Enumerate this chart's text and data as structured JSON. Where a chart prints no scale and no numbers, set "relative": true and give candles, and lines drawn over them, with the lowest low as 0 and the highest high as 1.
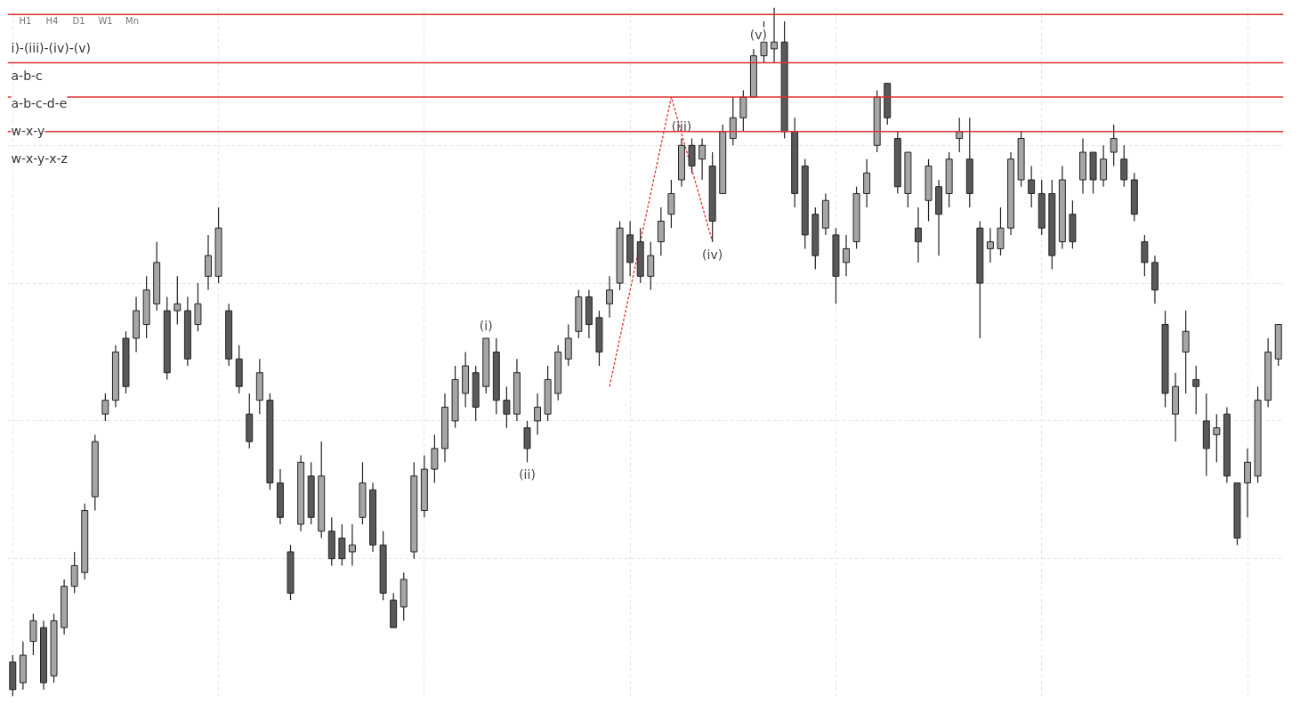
{
  "chart_data": {
    "type": "candlestick",
    "relative": true,
    "grid": true,
    "tick_labels": false,
    "series": [
      {
        "colors": [
          "#595959",
          "#a6a6a6",
          "#a6a6a6",
          "#595959",
          "#a6a6a6",
          "#a6a6a6",
          "#a6a6a6",
          "#a6a6a6",
          "#a6a6a6",
          "#a6a6a6",
          "#a6a6a6",
          "#595959",
          "#a6a6a6",
          "#a6a6a6",
          "#a6a6a6",
          "#595959",
          "#a6a6a6",
          "#595959",
          "#a6a6a6",
          "#a6a6a6",
          "#a6a6a6",
          "#595959",
          "#595959",
          "#595959",
          "#a6a6a6",
          "#595959",
          "#595959",
          "#595959",
          "#a6a6a6",
          "#595959",
          "#a6a6a6",
          "#595959",
          "#595959",
          "#a6a6a6",
          "#a6a6a6",
          "#595959",
          "#595959",
          "#595959",
          "#a6a6a6",
          "#a6a6a6",
          "#a6a6a6",
          "#a6a6a6",
          "#a6a6a6",
          "#a6a6a6",
          "#a6a6a6",
          "#595959",
          "#a6a6a6",
          "#595959",
          "#595959",
          "#a6a6a6",
          "#595959",
          "#a6a6a6",
          "#a6a6a6",
          "#a6a6a6",
          "#a6a6a6",
          "#a6a6a6",
          "#595959",
          "#595959",
          "#a6a6a6",
          "#a6a6a6",
          "#595959",
          "#595959",
          "#a6a6a6",
          "#a6a6a6",
          "#a6a6a6",
          "#a6a6a6",
          "#595959",
          "#a6a6a6",
          "#595959",
          "#a6a6a6",
          "#a6a6a6",
          "#a6a6a6",
          "#a6a6a6",
          "#a6a6a6",
          "#a6a6a6",
          "#595959",
          "#595959",
          "#595959",
          "#595959",
          "#a6a6a6",
          "#595959",
          "#a6a6a6",
          "#a6a6a6",
          "#a6a6a6",
          "#a6a6a6",
          "#595959",
          "#595959",
          "#a6a6a6",
          "#595959",
          "#a6a6a6",
          "#595959",
          "#a6a6a6",
          "#a6a6a6",
          "#595959",
          "#595959",
          "#a6a6a6",
          "#a6a6a6",
          "#a6a6a6",
          "#a6a6a6",
          "#595959",
          "#595959",
          "#595959",
          "#a6a6a6",
          "#595959",
          "#a6a6a6",
          "#595959",
          "#a6a6a6",
          "#a6a6a6",
          "#595959",
          "#595959",
          "#595959",
          "#595959",
          "#595959",
          "#a6a6a6",
          "#a6a6a6",
          "#595959",
          "#595959",
          "#a6a6a6",
          "#595959",
          "#595959",
          "#a6a6a6",
          "#a6a6a6",
          "#a6a6a6",
          "#a6a6a6"
        ],
        "value_labels": [
          null,
          null,
          null,
          null,
          null,
          null,
          null,
          null,
          null,
          null,
          null,
          null,
          null,
          null,
          null,
          null,
          null,
          null,
          null,
          null,
          null,
          null,
          null,
          null,
          null,
          null,
          null,
          null,
          null,
          null,
          null,
          null,
          null,
          null,
          null,
          null,
          null,
          null,
          null,
          null,
          null,
          null,
          null,
          null,
          null,
          null,
          "(i)",
          null,
          null,
          null,
          "(ii)",
          null,
          null,
          null,
          null,
          null,
          null,
          null,
          null,
          null,
          null,
          null,
          null,
          null,
          null,
          "(iii)",
          null,
          null,
          "(iv)",
          null,
          null,
          null,
          null,
          null,
          "(v)",
          null,
          null,
          null,
          null,
          null,
          null,
          null,
          null,
          null,
          null,
          null,
          null,
          null,
          null,
          null,
          null,
          null,
          null,
          null,
          null,
          null,
          null,
          null,
          null,
          null,
          null,
          null,
          null,
          null,
          null,
          null,
          null,
          null,
          null,
          null,
          null,
          null,
          null,
          null,
          null,
          null,
          null,
          null,
          null,
          null,
          null,
          null,
          null,
          null
        ],
        "ohlc": [
          [
            0.05,
            0.06,
            0.0,
            0.01
          ],
          [
            0.02,
            0.08,
            0.01,
            0.06
          ],
          [
            0.08,
            0.12,
            0.06,
            0.11
          ],
          [
            0.1,
            0.11,
            0.01,
            0.02
          ],
          [
            0.03,
            0.12,
            0.02,
            0.11
          ],
          [
            0.1,
            0.17,
            0.09,
            0.16
          ],
          [
            0.16,
            0.21,
            0.15,
            0.19
          ],
          [
            0.18,
            0.28,
            0.17,
            0.27
          ],
          [
            0.29,
            0.38,
            0.27,
            0.37
          ],
          [
            0.41,
            0.44,
            0.4,
            0.43
          ],
          [
            0.43,
            0.51,
            0.42,
            0.5
          ],
          [
            0.52,
            0.53,
            0.44,
            0.45
          ],
          [
            0.52,
            0.58,
            0.5,
            0.56
          ],
          [
            0.54,
            0.61,
            0.52,
            0.59
          ],
          [
            0.57,
            0.66,
            0.56,
            0.63
          ],
          [
            0.56,
            0.58,
            0.46,
            0.47
          ],
          [
            0.56,
            0.61,
            0.54,
            0.57
          ],
          [
            0.56,
            0.58,
            0.48,
            0.49
          ],
          [
            0.54,
            0.6,
            0.53,
            0.57
          ],
          [
            0.61,
            0.67,
            0.59,
            0.64
          ],
          [
            0.61,
            0.71,
            0.6,
            0.68
          ],
          [
            0.56,
            0.57,
            0.48,
            0.49
          ],
          [
            0.49,
            0.51,
            0.44,
            0.45
          ],
          [
            0.41,
            0.44,
            0.36,
            0.37
          ],
          [
            0.43,
            0.49,
            0.41,
            0.47
          ],
          [
            0.43,
            0.44,
            0.3,
            0.31
          ],
          [
            0.31,
            0.33,
            0.25,
            0.26
          ],
          [
            0.21,
            0.22,
            0.14,
            0.15
          ],
          [
            0.25,
            0.35,
            0.24,
            0.34
          ],
          [
            0.32,
            0.34,
            0.25,
            0.26
          ],
          [
            0.24,
            0.37,
            0.23,
            0.32
          ],
          [
            0.24,
            0.26,
            0.19,
            0.2
          ],
          [
            0.23,
            0.25,
            0.19,
            0.2
          ],
          [
            0.21,
            0.25,
            0.19,
            0.22
          ],
          [
            0.26,
            0.34,
            0.25,
            0.31
          ],
          [
            0.3,
            0.31,
            0.21,
            0.22
          ],
          [
            0.22,
            0.24,
            0.14,
            0.15
          ],
          [
            0.14,
            0.15,
            0.1,
            0.1
          ],
          [
            0.13,
            0.18,
            0.11,
            0.17
          ],
          [
            0.21,
            0.34,
            0.2,
            0.32
          ],
          [
            0.27,
            0.35,
            0.26,
            0.33
          ],
          [
            0.33,
            0.38,
            0.31,
            0.36
          ],
          [
            0.36,
            0.44,
            0.34,
            0.42
          ],
          [
            0.4,
            0.48,
            0.39,
            0.46
          ],
          [
            0.44,
            0.5,
            0.42,
            0.48
          ],
          [
            0.47,
            0.48,
            0.4,
            0.42
          ],
          [
            0.45,
            0.52,
            0.44,
            0.52
          ],
          [
            0.5,
            0.52,
            0.41,
            0.43
          ],
          [
            0.43,
            0.45,
            0.39,
            0.41
          ],
          [
            0.41,
            0.49,
            0.4,
            0.47
          ],
          [
            0.39,
            0.4,
            0.34,
            0.36
          ],
          [
            0.4,
            0.44,
            0.38,
            0.42
          ],
          [
            0.41,
            0.48,
            0.4,
            0.46
          ],
          [
            0.44,
            0.51,
            0.43,
            0.5
          ],
          [
            0.49,
            0.54,
            0.48,
            0.52
          ],
          [
            0.53,
            0.59,
            0.52,
            0.58
          ],
          [
            0.58,
            0.59,
            0.52,
            0.54
          ],
          [
            0.55,
            0.56,
            0.48,
            0.5
          ],
          [
            0.57,
            0.61,
            0.55,
            0.59
          ],
          [
            0.6,
            0.69,
            0.59,
            0.68
          ],
          [
            0.67,
            0.69,
            0.61,
            0.63
          ],
          [
            0.66,
            0.68,
            0.6,
            0.61
          ],
          [
            0.61,
            0.66,
            0.59,
            0.64
          ],
          [
            0.66,
            0.71,
            0.64,
            0.69
          ],
          [
            0.7,
            0.75,
            0.68,
            0.73
          ],
          [
            0.75,
            0.81,
            0.74,
            0.8
          ],
          [
            0.8,
            0.81,
            0.76,
            0.77
          ],
          [
            0.78,
            0.81,
            0.75,
            0.8
          ],
          [
            0.77,
            0.79,
            0.66,
            0.69
          ],
          [
            0.73,
            0.83,
            0.73,
            0.82
          ],
          [
            0.81,
            0.87,
            0.8,
            0.84
          ],
          [
            0.84,
            0.88,
            0.82,
            0.87
          ],
          [
            0.87,
            0.94,
            0.87,
            0.93
          ],
          [
            0.93,
            0.98,
            0.92,
            0.95
          ],
          [
            0.94,
            1.0,
            0.92,
            0.95
          ],
          [
            0.95,
            0.98,
            0.81,
            0.82
          ],
          [
            0.82,
            0.84,
            0.71,
            0.73
          ],
          [
            0.77,
            0.78,
            0.65,
            0.67
          ],
          [
            0.7,
            0.71,
            0.62,
            0.64
          ],
          [
            0.68,
            0.73,
            0.67,
            0.72
          ],
          [
            0.67,
            0.68,
            0.57,
            0.61
          ],
          [
            0.63,
            0.67,
            0.61,
            0.65
          ],
          [
            0.66,
            0.74,
            0.65,
            0.73
          ],
          [
            0.73,
            0.78,
            0.71,
            0.76
          ],
          [
            0.8,
            0.88,
            0.79,
            0.87
          ],
          [
            0.89,
            0.89,
            0.83,
            0.84
          ],
          [
            0.81,
            0.82,
            0.73,
            0.74
          ],
          [
            0.73,
            0.79,
            0.71,
            0.79
          ],
          [
            0.68,
            0.71,
            0.63,
            0.66
          ],
          [
            0.72,
            0.78,
            0.69,
            0.77
          ],
          [
            0.74,
            0.75,
            0.64,
            0.7
          ],
          [
            0.73,
            0.79,
            0.71,
            0.78
          ],
          [
            0.81,
            0.84,
            0.79,
            0.82
          ],
          [
            0.78,
            0.84,
            0.71,
            0.73
          ],
          [
            0.68,
            0.69,
            0.52,
            0.6
          ],
          [
            0.65,
            0.68,
            0.63,
            0.66
          ],
          [
            0.65,
            0.71,
            0.64,
            0.68
          ],
          [
            0.68,
            0.79,
            0.67,
            0.78
          ],
          [
            0.75,
            0.82,
            0.74,
            0.81
          ],
          [
            0.75,
            0.77,
            0.71,
            0.73
          ],
          [
            0.73,
            0.75,
            0.67,
            0.68
          ],
          [
            0.73,
            0.75,
            0.62,
            0.64
          ],
          [
            0.66,
            0.77,
            0.65,
            0.75
          ],
          [
            0.7,
            0.72,
            0.65,
            0.66
          ],
          [
            0.75,
            0.81,
            0.73,
            0.79
          ],
          [
            0.79,
            0.79,
            0.73,
            0.75
          ],
          [
            0.75,
            0.8,
            0.74,
            0.78
          ],
          [
            0.79,
            0.83,
            0.77,
            0.81
          ],
          [
            0.78,
            0.8,
            0.74,
            0.75
          ],
          [
            0.75,
            0.76,
            0.69,
            0.7
          ],
          [
            0.66,
            0.67,
            0.61,
            0.63
          ],
          [
            0.63,
            0.64,
            0.57,
            0.59
          ],
          [
            0.54,
            0.56,
            0.42,
            0.44
          ],
          [
            0.41,
            0.47,
            0.37,
            0.45
          ],
          [
            0.5,
            0.56,
            0.44,
            0.53
          ],
          [
            0.46,
            0.48,
            0.41,
            0.45
          ],
          [
            0.4,
            0.44,
            0.32,
            0.36
          ],
          [
            0.38,
            0.41,
            0.34,
            0.39
          ],
          [
            0.41,
            0.42,
            0.31,
            0.32
          ],
          [
            0.31,
            0.31,
            0.22,
            0.23
          ],
          [
            0.31,
            0.36,
            0.26,
            0.34
          ],
          [
            0.32,
            0.45,
            0.31,
            0.43
          ],
          [
            0.43,
            0.52,
            0.42,
            0.5
          ],
          [
            0.49,
            0.54,
            0.48,
            0.54
          ]
        ]
      },
      {
        "type": "line",
        "color": "#e03030",
        "line_style": "dashed",
        "values": [
          null,
          null,
          null,
          null,
          null,
          null,
          null,
          null,
          null,
          null,
          null,
          null,
          null,
          null,
          null,
          null,
          null,
          null,
          null,
          null,
          null,
          null,
          null,
          null,
          null,
          null,
          null,
          null,
          null,
          null,
          null,
          null,
          null,
          null,
          null,
          null,
          null,
          null,
          null,
          null,
          null,
          null,
          null,
          null,
          null,
          null,
          null,
          null,
          null,
          null,
          null,
          null,
          null,
          null,
          null,
          null,
          null,
          null,
          0.45,
          null,
          null,
          null,
          null,
          null,
          0.87,
          null,
          null,
          null,
          0.66,
          null,
          null,
          null,
          null,
          null,
          null,
          null,
          null,
          null,
          null,
          null,
          null,
          null,
          null,
          null,
          null,
          null,
          null,
          null,
          null,
          null,
          null,
          null,
          null,
          null,
          null,
          null,
          null,
          null,
          null,
          null,
          null,
          null,
          null,
          null,
          null,
          null,
          null,
          null,
          null,
          null,
          null,
          null,
          null,
          null,
          null,
          null,
          null,
          null,
          null,
          null,
          null,
          null,
          null,
          null
        ]
      }
    ],
    "ref_lines": [
      {
        "axis": "y",
        "value": 0.99,
        "color": "#e03030"
      },
      {
        "axis": "y",
        "value": 0.92,
        "color": "#e03030"
      },
      {
        "axis": "y",
        "value": 0.87,
        "color": "#e03030"
      },
      {
        "axis": "y",
        "value": 0.82,
        "color": "#e03030"
      }
    ],
    "categories": [
      null,
      null,
      null,
      null,
      null,
      null,
      null,
      null,
      null,
      null,
      null,
      null,
      null,
      null,
      null,
      null,
      null,
      null,
      null,
      null,
      null,
      null,
      null,
      null,
      null,
      null,
      null,
      null,
      null,
      null,
      null,
      null,
      null,
      null,
      null,
      null,
      null,
      null,
      null,
      null,
      null,
      null,
      null,
      null,
      null,
      null,
      null,
      null,
      null,
      null,
      null,
      null,
      null,
      null,
      null,
      null,
      null,
      null,
      null,
      null,
      null,
      null,
      null,
      null,
      null,
      null,
      null,
      null,
      null,
      null,
      null,
      null,
      null,
      null,
      null,
      null,
      null,
      null,
      null,
      null,
      null,
      null,
      null,
      null,
      null,
      null,
      null,
      null,
      null,
      null,
      null,
      null,
      null,
      null,
      null,
      null,
      null,
      null,
      null,
      null,
      null,
      null,
      null,
      null,
      null,
      null,
      null,
      null,
      null,
      null,
      null,
      null,
      null,
      null,
      null,
      null,
      null,
      null,
      null,
      null,
      null,
      null,
      null,
      null
    ],
    "annotations": [
      "H1",
      "H4",
      "D1",
      "W1",
      "Mn",
      "i)-(iii)-(iv)-(v)",
      "a-b-c",
      "a-b-c-d-e",
      "w-x-y",
      "w-x-y-x-z"
    ]
  }
}
